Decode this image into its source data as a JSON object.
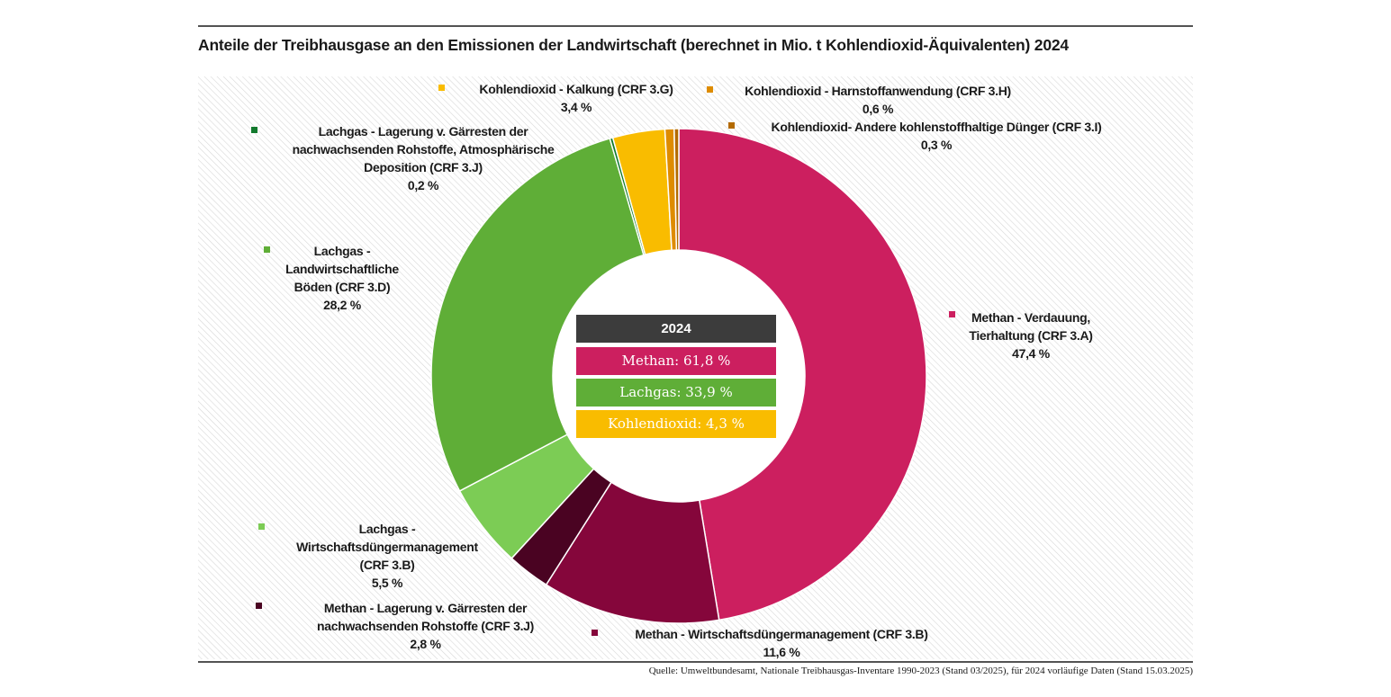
{
  "chart_data": {
    "type": "donut",
    "title": "Anteile der Treibhausgase an den Emissionen der Landwirtschaft (berechnet in Mio. t Kohlendioxid-Äquivalenten) 2024",
    "categories": [
      "Methan - Verdauung, Tierhaltung (CRF 3.A)",
      "Methan - Wirtschaftsdüngermanagement (CRF 3.B)",
      "Methan - Lagerung v. Gärresten der nachwachsenden Rohstoffe (CRF 3.J)",
      "Lachgas - Wirtschaftsdüngermanagement (CRF 3.B)",
      "Lachgas - Landwirtschaftliche Böden (CRF 3.D)",
      "Lachgas - Lagerung v. Gärresten der nachwachsenden Rohstoffe, Atmosphärische Deposition (CRF 3.J)",
      "Kohlendioxid - Kalkung (CRF 3.G)",
      "Kohlendioxid - Harnstoffanwendung (CRF 3.H)",
      "Kohlendioxid- Andere kohlenstoffhaltige Dünger (CRF 3.I)"
    ],
    "values": [
      47.4,
      11.6,
      2.8,
      5.5,
      28.2,
      0.2,
      3.4,
      0.6,
      0.3
    ],
    "value_labels": [
      "47,4 %",
      "11,6 %",
      "2,8 %",
      "5,5 %",
      "28,2 %",
      "0,2 %",
      "3,4 %",
      "0,6 %",
      "0,3 %"
    ],
    "colors": [
      "#cc1f5f",
      "#85063b",
      "#4a0322",
      "#7ccc55",
      "#5fae37",
      "#137a2e",
      "#f9bc00",
      "#de8c00",
      "#b36a00"
    ],
    "summary": {
      "title": "2024",
      "rows": [
        "Methan:  61,8 %",
        "Lachgas: 33,9 %",
        "Kohlendioxid: 4,3 %"
      ]
    },
    "source": "Quelle: Umweltbundesamt, Nationale Treibhausgas-Inventare 1990-2023 (Stand 03/2025), für 2024 vorläufige Daten (Stand 15.03.2025)"
  }
}
